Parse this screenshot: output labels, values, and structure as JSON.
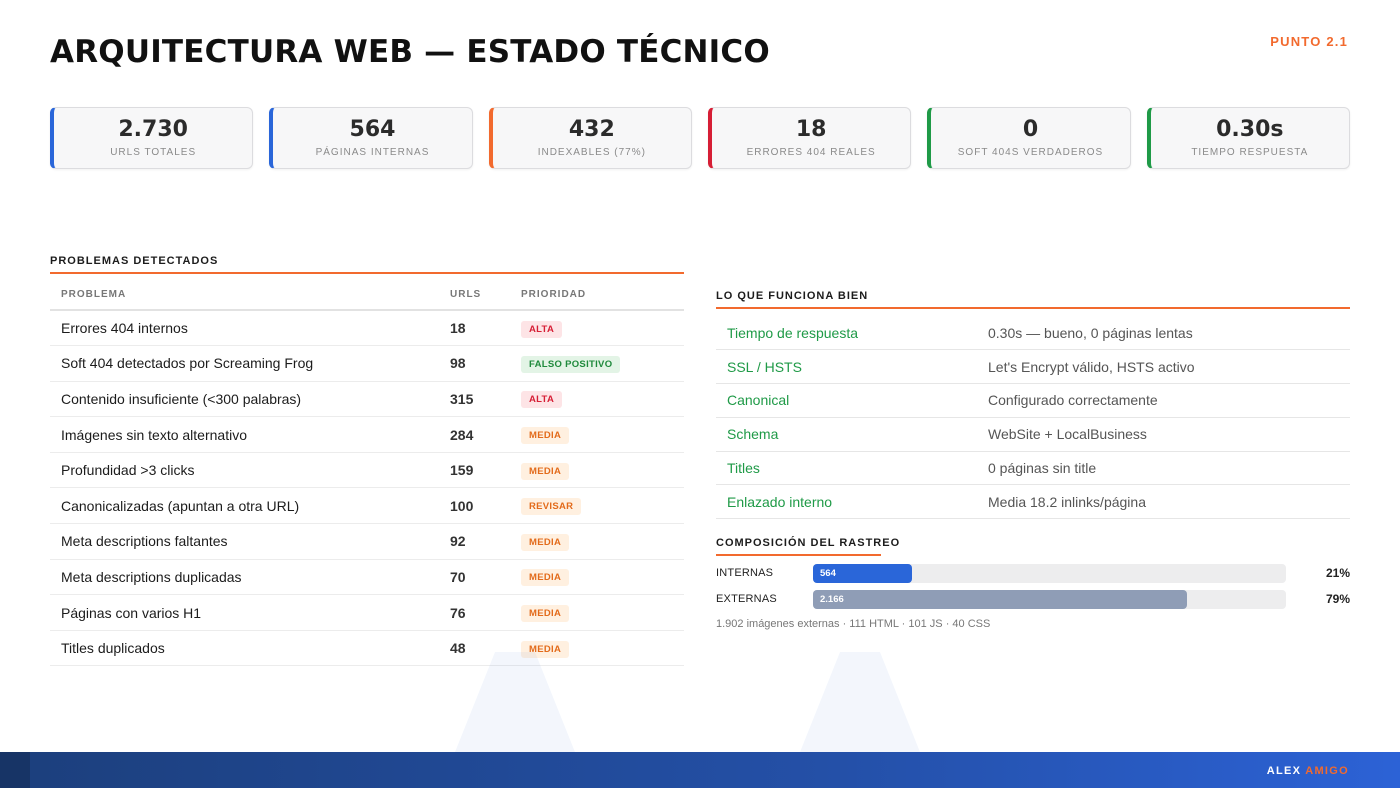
{
  "header": {
    "title": "ARQUITECTURA WEB — ESTADO TÉCNICO",
    "section_tag": "PUNTO 2.1"
  },
  "colors": {
    "blue": "#2a66d9",
    "orange": "#f26a2e",
    "red": "#d61e35",
    "green": "#1f9a47",
    "gray_bar": "#8f9db6"
  },
  "stats": [
    {
      "value": "2.730",
      "label": "URLS TOTALES",
      "color": "#2a66d9"
    },
    {
      "value": "564",
      "label": "PÁGINAS INTERNAS",
      "color": "#2a66d9"
    },
    {
      "value": "432",
      "label": "INDEXABLES (77%)",
      "color": "#f26a2e"
    },
    {
      "value": "18",
      "label": "ERRORES 404 REALES",
      "color": "#d61e35"
    },
    {
      "value": "0",
      "label": "SOFT 404S VERDADEROS",
      "color": "#1f9a47"
    },
    {
      "value": "0.30s",
      "label": "TIEMPO RESPUESTA",
      "color": "#1f9a47"
    }
  ],
  "problems": {
    "title": "PROBLEMAS DETECTADOS",
    "columns": {
      "problem": "PROBLEMA",
      "urls": "URLS",
      "priority": "PRIORIDAD"
    },
    "rows": [
      {
        "problem": "Errores 404 internos",
        "urls": "18",
        "priority": "ALTA",
        "kind": "alta"
      },
      {
        "problem": "Soft 404 detectados por Screaming Frog",
        "urls": "98",
        "priority": "FALSO POSITIVO",
        "kind": "falso"
      },
      {
        "problem": "Contenido insuficiente (<300 palabras)",
        "urls": "315",
        "priority": "ALTA",
        "kind": "alta"
      },
      {
        "problem": "Imágenes sin texto alternativo",
        "urls": "284",
        "priority": "MEDIA",
        "kind": "media"
      },
      {
        "problem": "Profundidad >3 clicks",
        "urls": "159",
        "priority": "MEDIA",
        "kind": "media"
      },
      {
        "problem": "Canonicalizadas (apuntan a otra URL)",
        "urls": "100",
        "priority": "REVISAR",
        "kind": "revisar"
      },
      {
        "problem": "Meta descriptions faltantes",
        "urls": "92",
        "priority": "MEDIA",
        "kind": "media"
      },
      {
        "problem": "Meta descriptions duplicadas",
        "urls": "70",
        "priority": "MEDIA",
        "kind": "media"
      },
      {
        "problem": "Páginas con varios H1",
        "urls": "76",
        "priority": "MEDIA",
        "kind": "media"
      },
      {
        "problem": "Titles duplicados",
        "urls": "48",
        "priority": "MEDIA",
        "kind": "media"
      }
    ]
  },
  "working": {
    "title": "LO QUE FUNCIONA BIEN",
    "rows": [
      {
        "key": "Tiempo de respuesta",
        "value": "0.30s — bueno, 0 páginas lentas"
      },
      {
        "key": "SSL / HSTS",
        "value": "Let's Encrypt válido, HSTS activo"
      },
      {
        "key": "Canonical",
        "value": "Configurado correctamente"
      },
      {
        "key": "Schema",
        "value": "WebSite + LocalBusiness"
      },
      {
        "key": "Titles",
        "value": "0 páginas sin title"
      },
      {
        "key": "Enlazado interno",
        "value": "Media 18.2 inlinks/página"
      }
    ]
  },
  "crawl": {
    "title": "COMPOSICIÓN DEL RASTREO",
    "bars": [
      {
        "label": "INTERNAS",
        "count": "564",
        "pct_text": "21%",
        "fraction": 0.21,
        "color": "#2a66d9"
      },
      {
        "label": "EXTERNAS",
        "count": "2.166",
        "pct_text": "79%",
        "fraction": 0.79,
        "color": "#8f9db6"
      }
    ],
    "note": "1.902 imágenes externas · 111 HTML · 101 JS · 40 CSS"
  },
  "footer": {
    "brand_first": "ALEX",
    "brand_second": "AMIGO"
  }
}
